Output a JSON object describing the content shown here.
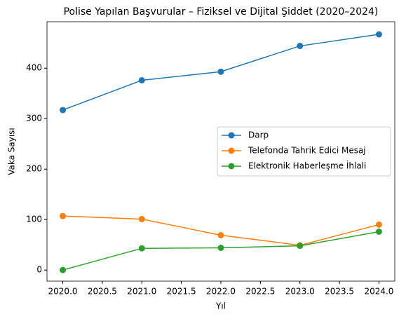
{
  "chart_data": {
    "type": "line",
    "title": "Polise Yapılan Başvurular – Fiziksel ve Dijital Şiddet (2020–2024)",
    "x_label": "Yıl",
    "y_label": "Vaka Sayısı",
    "x": [
      2020,
      2021,
      2022,
      2023,
      2024
    ],
    "series": [
      {
        "name": "Darp",
        "color": "#1f77b4",
        "values": [
          317,
          376,
          393,
          444,
          467
        ]
      },
      {
        "name": "Telefonda Tahrik Edici Mesaj",
        "color": "#ff7f0e",
        "values": [
          107,
          101,
          69,
          49,
          90
        ]
      },
      {
        "name": "Elektronik Haberleşme İhlali",
        "color": "#2ca02c",
        "values": [
          0,
          43,
          44,
          48,
          76
        ]
      }
    ],
    "xlim": [
      2019.8,
      2024.2
    ],
    "xticks": [
      {
        "value": 2020,
        "label": "2020.0"
      },
      2020.5,
      {
        "value": 2021,
        "label": "2021.0"
      },
      2021.5,
      {
        "value": 2022,
        "label": "2022.0"
      },
      2022.5,
      {
        "value": 2023,
        "label": "2023.0"
      },
      2023.5,
      {
        "value": 2024,
        "label": "2024.0"
      }
    ],
    "ylim": [
      -22,
      492
    ],
    "yticks": [
      0,
      100,
      200,
      300,
      400
    ],
    "grid": false,
    "legend": "center right"
  }
}
